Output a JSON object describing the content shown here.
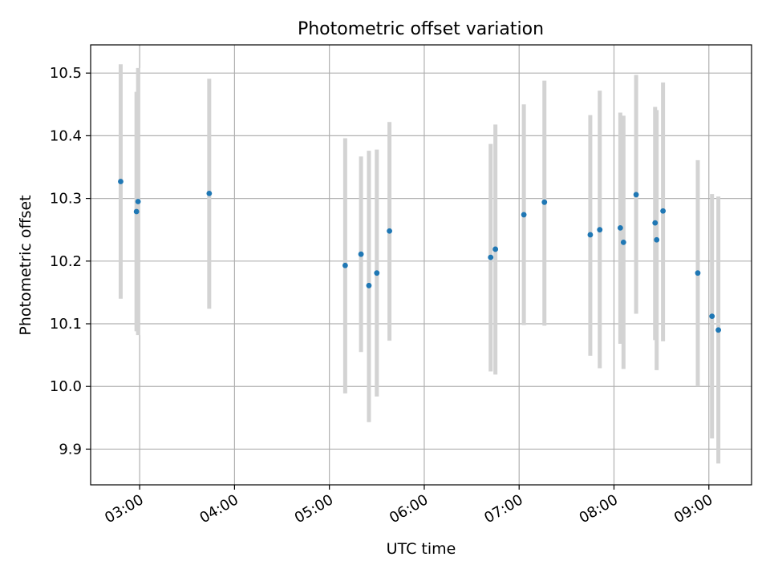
{
  "chart_data": {
    "type": "scatter",
    "title": "Photometric offset variation",
    "xlabel": "UTC time",
    "ylabel": "Photometric offset",
    "grid": true,
    "xlim": [
      "02:29",
      "09:27"
    ],
    "ylim": [
      9.843,
      10.545
    ],
    "x_ticks": [
      "03:00",
      "04:00",
      "05:00",
      "06:00",
      "07:00",
      "08:00",
      "09:00"
    ],
    "y_ticks": [
      "9.9",
      "10.0",
      "10.1",
      "10.2",
      "10.3",
      "10.4",
      "10.5"
    ],
    "colors": {
      "point": "#1f77b4",
      "errorbar": "#d3d3d3",
      "grid": "#b0b0b0"
    },
    "points": [
      {
        "x": "02:48",
        "y": 10.327,
        "ylow": 10.14,
        "yhigh": 10.514
      },
      {
        "x": "02:58",
        "y": 10.279,
        "ylow": 10.088,
        "yhigh": 10.47
      },
      {
        "x": "02:59",
        "y": 10.295,
        "ylow": 10.082,
        "yhigh": 10.508
      },
      {
        "x": "03:44",
        "y": 10.308,
        "ylow": 10.124,
        "yhigh": 10.491
      },
      {
        "x": "05:10",
        "y": 10.193,
        "ylow": 9.989,
        "yhigh": 10.396
      },
      {
        "x": "05:20",
        "y": 10.211,
        "ylow": 10.055,
        "yhigh": 10.367
      },
      {
        "x": "05:25",
        "y": 10.161,
        "ylow": 9.943,
        "yhigh": 10.376
      },
      {
        "x": "05:30",
        "y": 10.181,
        "ylow": 9.984,
        "yhigh": 10.378
      },
      {
        "x": "05:38",
        "y": 10.248,
        "ylow": 10.073,
        "yhigh": 10.422
      },
      {
        "x": "06:42",
        "y": 10.206,
        "ylow": 10.024,
        "yhigh": 10.387
      },
      {
        "x": "06:45",
        "y": 10.219,
        "ylow": 10.019,
        "yhigh": 10.418
      },
      {
        "x": "07:03",
        "y": 10.274,
        "ylow": 10.098,
        "yhigh": 10.45
      },
      {
        "x": "07:16",
        "y": 10.294,
        "ylow": 10.097,
        "yhigh": 10.488
      },
      {
        "x": "07:45",
        "y": 10.242,
        "ylow": 10.049,
        "yhigh": 10.433
      },
      {
        "x": "07:51",
        "y": 10.25,
        "ylow": 10.029,
        "yhigh": 10.472
      },
      {
        "x": "08:04",
        "y": 10.253,
        "ylow": 10.068,
        "yhigh": 10.437
      },
      {
        "x": "08:06",
        "y": 10.23,
        "ylow": 10.028,
        "yhigh": 10.432
      },
      {
        "x": "08:14",
        "y": 10.306,
        "ylow": 10.116,
        "yhigh": 10.497
      },
      {
        "x": "08:26",
        "y": 10.261,
        "ylow": 10.074,
        "yhigh": 10.446
      },
      {
        "x": "08:27",
        "y": 10.234,
        "ylow": 10.026,
        "yhigh": 10.441
      },
      {
        "x": "08:31",
        "y": 10.28,
        "ylow": 10.072,
        "yhigh": 10.485
      },
      {
        "x": "08:53",
        "y": 10.181,
        "ylow": 10.0,
        "yhigh": 10.361
      },
      {
        "x": "09:02",
        "y": 10.112,
        "ylow": 9.917,
        "yhigh": 10.307
      },
      {
        "x": "09:06",
        "y": 10.09,
        "ylow": 9.877,
        "yhigh": 10.303
      }
    ]
  }
}
